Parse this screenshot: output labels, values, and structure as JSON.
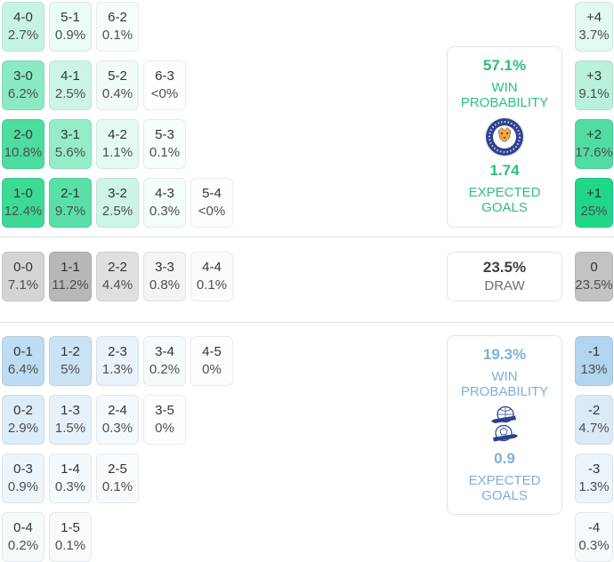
{
  "colors": {
    "home_accent": "#2dbe7e",
    "away_accent": "#7db0d7",
    "draw_value_text": "#3f3f3f",
    "draw_label_text": "#6e6e6e",
    "cell_score_text": "#333333",
    "cell_pct_text": "#4e4e4e",
    "divider": "#e1e1e1",
    "home_max_cell": "#20d689",
    "away_max_cell": "#b1d5ee",
    "draw_max_cell": "#b8b8b8"
  },
  "sections": {
    "home": {
      "score_rows": [
        [
          {
            "score": "4-0",
            "pct": "2.7%",
            "bg": "#c7f4e2"
          },
          {
            "score": "5-1",
            "pct": "0.9%",
            "bg": "#e9fbf3"
          },
          {
            "score": "6-2",
            "pct": "0.1%",
            "bg": "#f8fefb"
          }
        ],
        [
          {
            "score": "3-0",
            "pct": "6.2%",
            "bg": "#8beac4"
          },
          {
            "score": "4-1",
            "pct": "2.5%",
            "bg": "#ccf5e5"
          },
          {
            "score": "5-2",
            "pct": "0.4%",
            "bg": "#f1fcf8"
          },
          {
            "score": "6-3",
            "pct": "<0%",
            "bg": "#fbfefd"
          }
        ],
        [
          {
            "score": "2-0",
            "pct": "10.8%",
            "bg": "#4cdd9f"
          },
          {
            "score": "3-1",
            "pct": "5.6%",
            "bg": "#95ecc9"
          },
          {
            "score": "4-2",
            "pct": "1.1%",
            "bg": "#e4faf1"
          },
          {
            "score": "5-3",
            "pct": "0.1%",
            "bg": "#f8fefb"
          }
        ],
        [
          {
            "score": "1-0",
            "pct": "12.4%",
            "bg": "#3cda96"
          },
          {
            "score": "2-1",
            "pct": "9.7%",
            "bg": "#59dfa7"
          },
          {
            "score": "3-2",
            "pct": "2.5%",
            "bg": "#ccf5e5"
          },
          {
            "score": "4-3",
            "pct": "0.3%",
            "bg": "#f3fdf9"
          },
          {
            "score": "5-4",
            "pct": "<0%",
            "bg": "#fbfefd"
          }
        ]
      ],
      "panel": {
        "win_value": "57.1%",
        "win_label": "WIN PROBABILITY",
        "crest_icon": "leicester-city-crest-icon",
        "goals_value": "1.74",
        "goals_label": "EXPECTED GOALS"
      },
      "diff_cells": [
        {
          "label": "+4",
          "pct": "3.7%",
          "bg": "#e1f9ef"
        },
        {
          "label": "+3",
          "pct": "9.1%",
          "bg": "#b9f1da"
        },
        {
          "label": "+2",
          "pct": "17.6%",
          "bg": "#50dda1"
        },
        {
          "label": "+1",
          "pct": "25%",
          "bg": "#20d689"
        }
      ]
    },
    "draw": {
      "cells": [
        {
          "score": "0-0",
          "pct": "7.1%",
          "bg": "#d4d4d4"
        },
        {
          "score": "1-1",
          "pct": "11.2%",
          "bg": "#b8b8b8"
        },
        {
          "score": "2-2",
          "pct": "4.4%",
          "bg": "#dfdfdf"
        },
        {
          "score": "3-3",
          "pct": "0.8%",
          "bg": "#f4f4f4"
        },
        {
          "score": "4-4",
          "pct": "0.1%",
          "bg": "#fbfbfb"
        }
      ],
      "panel": {
        "value": "23.5%",
        "label": "DRAW"
      },
      "diff_cell": {
        "label": "0",
        "pct": "23.5%",
        "bg": "#c3c3c3"
      }
    },
    "away": {
      "score_rows": [
        [
          {
            "score": "0-1",
            "pct": "6.4%",
            "bg": "#bedcf2"
          },
          {
            "score": "1-2",
            "pct": "5%",
            "bg": "#c9e3f4"
          },
          {
            "score": "2-3",
            "pct": "1.3%",
            "bg": "#e9f3fb"
          },
          {
            "score": "3-4",
            "pct": "0.2%",
            "bg": "#f5fafd"
          },
          {
            "score": "4-5",
            "pct": "0%",
            "bg": "#fbfdff"
          }
        ],
        [
          {
            "score": "0-2",
            "pct": "2.9%",
            "bg": "#dcecf8"
          },
          {
            "score": "1-3",
            "pct": "1.5%",
            "bg": "#e6f1fa"
          },
          {
            "score": "2-4",
            "pct": "0.3%",
            "bg": "#f3f9fd"
          },
          {
            "score": "3-5",
            "pct": "0%",
            "bg": "#fbfdff"
          }
        ],
        [
          {
            "score": "0-3",
            "pct": "0.9%",
            "bg": "#edf5fb"
          },
          {
            "score": "1-4",
            "pct": "0.3%",
            "bg": "#f3f9fd"
          },
          {
            "score": "2-5",
            "pct": "0.1%",
            "bg": "#f8fbfe"
          }
        ],
        [
          {
            "score": "0-4",
            "pct": "0.2%",
            "bg": "#f5fafd"
          },
          {
            "score": "1-5",
            "pct": "0.1%",
            "bg": "#f8fbfe"
          }
        ]
      ],
      "panel": {
        "win_value": "19.3%",
        "win_label": "WIN PROBABILITY",
        "crest_icon": "away-team-crest-icon",
        "goals_value": "0.9",
        "goals_label": "EXPECTED GOALS"
      },
      "diff_cells": [
        {
          "label": "-1",
          "pct": "13%",
          "bg": "#b1d5ee"
        },
        {
          "label": "-2",
          "pct": "4.7%",
          "bg": "#daebf7"
        },
        {
          "label": "-3",
          "pct": "1.3%",
          "bg": "#ecf4fb"
        },
        {
          "label": "-4",
          "pct": "0.3%",
          "bg": "#f5fafd"
        }
      ]
    }
  }
}
